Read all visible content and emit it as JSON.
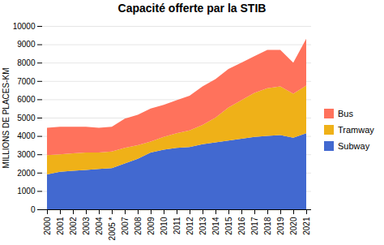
{
  "chart_data": {
    "type": "area",
    "title": "Capacité offerte par la STIB",
    "ylabel": "MILLIONS DE PLACES-KM",
    "categories": [
      "2000",
      "2001",
      "2002",
      "2003",
      "2004",
      "2005 *",
      "2007",
      "2008",
      "2009",
      "2010",
      "2011",
      "2012",
      "2013",
      "2014",
      "2015",
      "2016",
      "2017",
      "2018",
      "2019",
      "2020",
      "2021"
    ],
    "series": [
      {
        "name": "Subway",
        "values": [
          1900,
          2050,
          2100,
          2150,
          2200,
          2250,
          2500,
          2750,
          3100,
          3250,
          3350,
          3400,
          3550,
          3650,
          3750,
          3850,
          3950,
          4000,
          4050,
          3900,
          4150
        ]
      },
      {
        "name": "Tramway",
        "values": [
          1050,
          950,
          950,
          950,
          900,
          900,
          850,
          750,
          600,
          700,
          800,
          900,
          1050,
          1350,
          1800,
          2100,
          2400,
          2600,
          2650,
          2400,
          2600
        ]
      },
      {
        "name": "Bus",
        "values": [
          1500,
          1500,
          1450,
          1400,
          1350,
          1350,
          1600,
          1650,
          1800,
          1750,
          1800,
          1900,
          2100,
          2100,
          2100,
          2050,
          2000,
          2100,
          2000,
          1700,
          2550
        ]
      }
    ],
    "ylim": [
      0,
      10000
    ],
    "yticks": [
      0,
      1000,
      2000,
      3000,
      4000,
      5000,
      6000,
      7000,
      8000,
      9000,
      10000
    ],
    "stacked": true,
    "grid": true,
    "legend": "right"
  }
}
